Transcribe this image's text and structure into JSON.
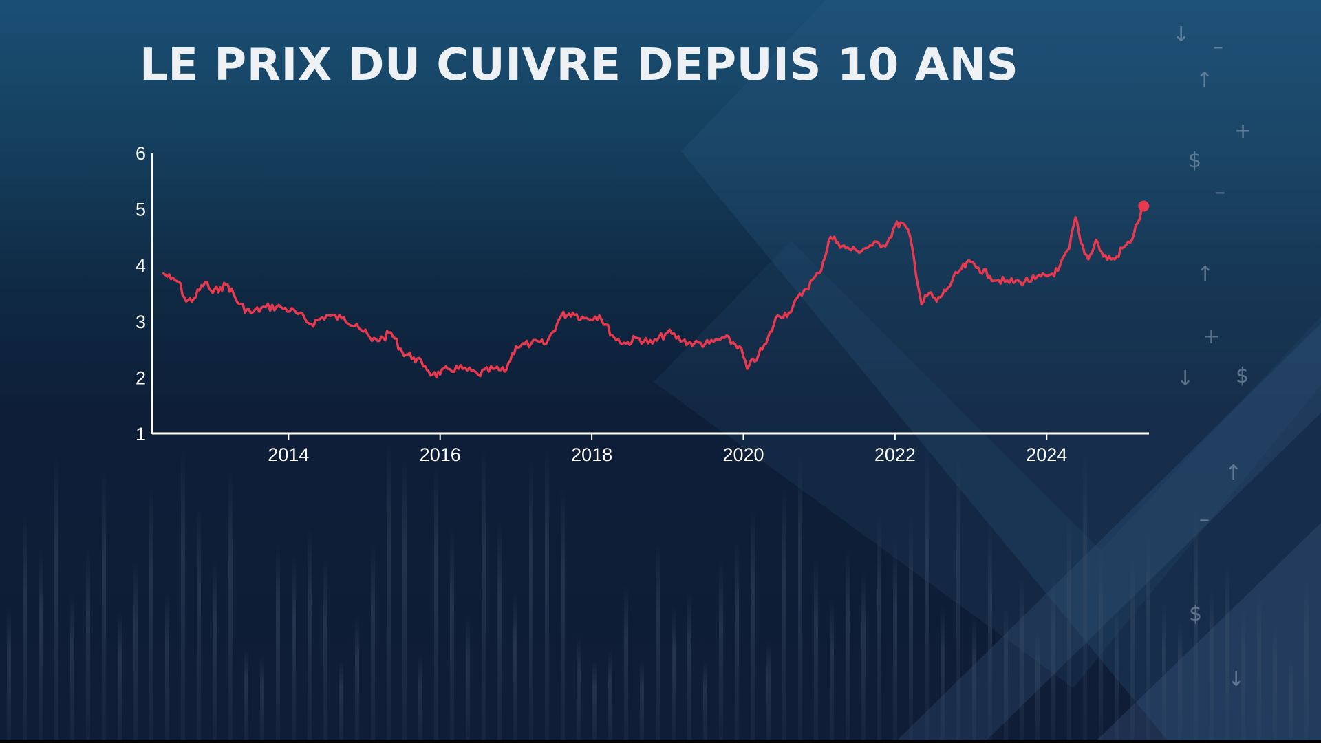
{
  "title": "LE PRIX DU CUIVRE DEPUIS 10 ANS",
  "colors": {
    "line": "#e8394f",
    "axis": "#ffffff",
    "text": "#ffffff"
  },
  "decor_symbols": [
    "↓",
    "–",
    "↑",
    "+",
    "$",
    "–",
    "↑",
    "+",
    "↓",
    "$",
    "↑",
    "–",
    "$",
    "↓"
  ],
  "chart_data": {
    "type": "line",
    "title": "LE PRIX DU CUIVRE DEPUIS 10 ANS",
    "xlabel": "",
    "ylabel": "",
    "xlim": [
      2012.2,
      2025.35
    ],
    "ylim": [
      1,
      6
    ],
    "x_ticks": [
      2014,
      2016,
      2018,
      2020,
      2022,
      2024
    ],
    "y_ticks": [
      1,
      2,
      3,
      4,
      5,
      6
    ],
    "grid": false,
    "end_marker": true,
    "series": [
      {
        "x": [
          2012.35,
          2012.45,
          2012.55,
          2012.65,
          2012.75,
          2012.9,
          2013.0,
          2013.1,
          2013.2,
          2013.35,
          2013.5,
          2013.7,
          2013.9,
          2014.1,
          2014.3,
          2014.5,
          2014.7,
          2014.9,
          2015.1,
          2015.25,
          2015.35,
          2015.5,
          2015.65,
          2015.8,
          2015.9,
          2016.0,
          2016.1,
          2016.3,
          2016.5,
          2016.7,
          2016.85,
          2017.0,
          2017.2,
          2017.4,
          2017.6,
          2017.75,
          2017.9,
          2018.1,
          2018.3,
          2018.45,
          2018.6,
          2018.8,
          2019.0,
          2019.2,
          2019.35,
          2019.55,
          2019.75,
          2019.95,
          2020.05,
          2020.2,
          2020.3,
          2020.45,
          2020.6,
          2020.8,
          2021.0,
          2021.15,
          2021.25,
          2021.35,
          2021.5,
          2021.7,
          2021.9,
          2022.0,
          2022.1,
          2022.2,
          2022.35,
          2022.45,
          2022.55,
          2022.7,
          2022.85,
          2023.0,
          2023.1,
          2023.25,
          2023.45,
          2023.65,
          2023.85,
          2024.0,
          2024.15,
          2024.3,
          2024.38,
          2024.45,
          2024.55,
          2024.65,
          2024.75,
          2024.9,
          2025.0,
          2025.1,
          2025.2,
          2025.28
        ],
        "y": [
          3.85,
          3.75,
          3.7,
          3.35,
          3.4,
          3.7,
          3.5,
          3.6,
          3.65,
          3.3,
          3.15,
          3.25,
          3.25,
          3.15,
          2.95,
          3.1,
          3.05,
          2.95,
          2.65,
          2.7,
          2.8,
          2.45,
          2.35,
          2.2,
          2.05,
          2.05,
          2.15,
          2.15,
          2.05,
          2.15,
          2.1,
          2.55,
          2.6,
          2.6,
          3.1,
          3.15,
          3.05,
          3.1,
          2.7,
          2.6,
          2.7,
          2.6,
          2.8,
          2.65,
          2.6,
          2.6,
          2.7,
          2.55,
          2.15,
          2.4,
          2.6,
          3.1,
          3.15,
          3.55,
          3.85,
          4.5,
          4.4,
          4.3,
          4.25,
          4.35,
          4.4,
          4.7,
          4.75,
          4.5,
          3.3,
          3.5,
          3.35,
          3.6,
          3.9,
          4.05,
          3.95,
          3.8,
          3.7,
          3.7,
          3.75,
          3.8,
          3.9,
          4.3,
          4.85,
          4.4,
          4.1,
          4.45,
          4.15,
          4.1,
          4.3,
          4.4,
          4.75,
          5.05
        ]
      }
    ]
  }
}
